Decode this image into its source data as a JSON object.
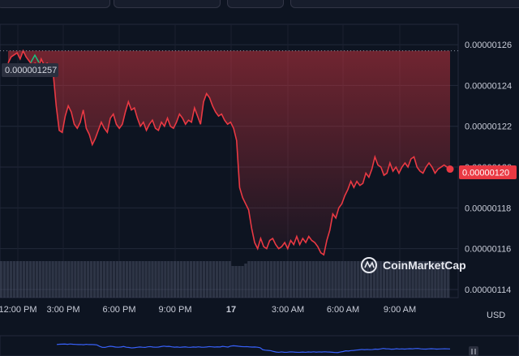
{
  "header": {
    "currency": "USD",
    "watermark": "CoinMarketCap"
  },
  "chart_data": {
    "type": "area",
    "title": "",
    "xlabel": "",
    "ylabel": "",
    "ylim": [
      1.136e-06,
      1.268e-06
    ],
    "y_ticks": [
      "0.00000126",
      "0.00000124",
      "0.00000122",
      "0.00000120",
      "0.00000118",
      "0.00000116",
      "0.00000114"
    ],
    "x_ticks": [
      "12:00 PM",
      "3:00 PM",
      "6:00 PM",
      "9:00 PM",
      "17",
      "3:00 AM",
      "6:00 AM",
      "9:00 AM"
    ],
    "high_marker": "0.000001257",
    "current_price": "0.00000120",
    "colors": {
      "line": "#ea3943",
      "area": "#ea3943",
      "up": "#16c784",
      "volume": "#4a5066",
      "mini": "#3861fb"
    },
    "series": [
      {
        "values": [
          1.251e-06,
          1.254e-06,
          1.255e-06,
          1.256e-06,
          1.253e-06,
          1.257e-06,
          1.254e-06,
          1.252e-06,
          1.25e-06,
          1.251e-06,
          1.248e-06,
          1.253e-06,
          1.25e-06,
          1.251e-06,
          1.249e-06,
          1.246e-06,
          1.23e-06,
          1.218e-06,
          1.217e-06,
          1.225e-06,
          1.23e-06,
          1.227e-06,
          1.221e-06,
          1.219e-06,
          1.222e-06,
          1.228e-06,
          1.219e-06,
          1.216e-06,
          1.211e-06,
          1.214e-06,
          1.218e-06,
          1.222e-06,
          1.219e-06,
          1.217e-06,
          1.224e-06,
          1.226e-06,
          1.221e-06,
          1.219e-06,
          1.221e-06,
          1.227e-06,
          1.232e-06,
          1.228e-06,
          1.229e-06,
          1.224e-06,
          1.22e-06,
          1.222e-06,
          1.218e-06,
          1.221e-06,
          1.223e-06,
          1.219e-06,
          1.218e-06,
          1.222e-06,
          1.22e-06,
          1.224e-06,
          1.22e-06,
          1.219e-06,
          1.222e-06,
          1.226e-06,
          1.224e-06,
          1.221e-06,
          1.223e-06,
          1.222e-06,
          1.229e-06,
          1.225e-06,
          1.221e-06,
          1.232e-06,
          1.236e-06,
          1.234e-06,
          1.23e-06,
          1.227e-06,
          1.225e-06,
          1.226e-06,
          1.223e-06,
          1.221e-06,
          1.222e-06,
          1.219e-06,
          1.213e-06,
          1.19e-06,
          1.185e-06,
          1.182e-06,
          1.179e-06,
          1.17e-06,
          1.163e-06,
          1.16e-06,
          1.165e-06,
          1.161e-06,
          1.16e-06,
          1.164e-06,
          1.165e-06,
          1.162e-06,
          1.16e-06,
          1.161e-06,
          1.163e-06,
          1.16e-06,
          1.164e-06,
          1.162e-06,
          1.166e-06,
          1.162e-06,
          1.165e-06,
          1.163e-06,
          1.166e-06,
          1.164e-06,
          1.163e-06,
          1.161e-06,
          1.158e-06,
          1.157e-06,
          1.164e-06,
          1.169e-06,
          1.177e-06,
          1.175e-06,
          1.18e-06,
          1.182e-06,
          1.186e-06,
          1.189e-06,
          1.193e-06,
          1.19e-06,
          1.193e-06,
          1.191e-06,
          1.192e-06,
          1.197e-06,
          1.195e-06,
          1.199e-06,
          1.205e-06,
          1.201e-06,
          1.2e-06,
          1.196e-06,
          1.197e-06,
          1.202e-06,
          1.198e-06,
          1.2e-06,
          1.197e-06,
          1.2e-06,
          1.202e-06,
          1.2e-06,
          1.204e-06,
          1.205e-06,
          1.2e-06,
          1.198e-06,
          1.197e-06,
          1.2e-06,
          1.202e-06,
          1.2e-06,
          1.197e-06,
          1.199e-06,
          1.2e-06,
          1.201e-06,
          1.2e-06,
          1.199e-06
        ]
      }
    ],
    "volume": [
      3,
      3,
      3,
      3,
      3,
      3,
      3,
      3,
      3,
      3,
      3,
      3,
      3,
      3,
      3,
      3,
      3,
      3,
      3,
      3,
      3,
      3,
      3,
      3,
      3,
      3,
      3,
      3,
      3,
      3,
      3,
      3,
      3,
      3,
      3,
      3,
      3,
      3,
      3,
      3,
      3,
      3,
      3,
      3,
      3,
      3,
      3,
      3,
      3,
      3,
      3,
      3,
      3,
      3,
      3,
      3,
      3,
      3,
      3,
      3,
      3,
      3,
      3,
      3,
      3,
      3,
      3,
      3,
      3,
      3,
      3,
      3,
      2.6,
      2.6,
      2.6,
      2.6,
      2.8,
      3,
      3,
      3,
      3,
      3,
      3,
      3,
      3,
      3,
      3,
      3,
      3,
      3,
      3,
      3,
      3,
      3,
      3,
      3,
      3,
      3,
      3,
      3,
      3,
      3,
      3,
      3,
      3,
      3,
      3,
      3,
      3,
      3,
      3,
      3,
      3,
      3,
      3,
      3,
      3,
      3,
      3,
      3,
      3,
      3,
      3,
      3,
      3,
      3,
      3,
      3,
      3,
      3,
      3,
      3,
      3,
      3,
      3,
      3,
      3,
      3,
      3,
      3
    ]
  }
}
